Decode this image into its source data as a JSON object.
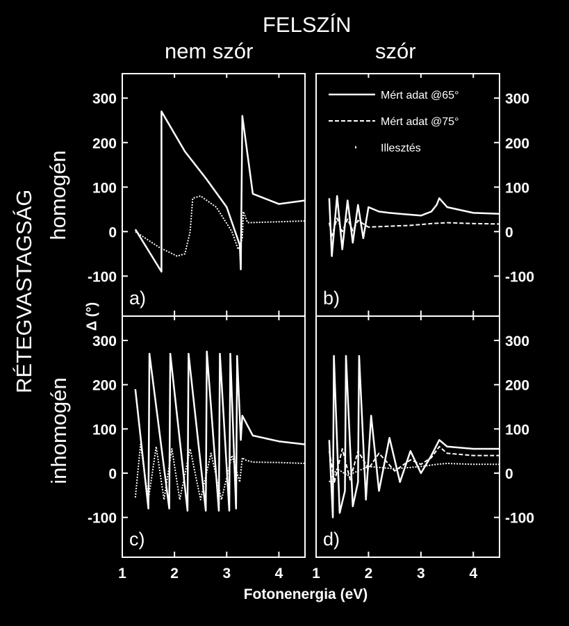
{
  "figure": {
    "top_title": "FELSZÍN",
    "col_left": "nem szór",
    "col_right": "szór",
    "row_axis_title": "RÉTEGVASTAGSÁG",
    "row_top": "homogén",
    "row_bottom": "inhomogén",
    "y_axis_label": "Δ (°)",
    "x_axis_label": "Fotonenergia (eV)",
    "colors": {
      "background": "#000000",
      "foreground": "#ffffff"
    }
  },
  "chart_data": [
    {
      "type": "line",
      "panel_label": "a)",
      "xlim": [
        1,
        4.5
      ],
      "ylim": [
        -190,
        355
      ],
      "x_ticks": [
        "1",
        "2",
        "3",
        "4"
      ],
      "y_ticks": [
        "-100",
        "0",
        "100",
        "200",
        "300"
      ],
      "y_axis_side": "left",
      "series": [
        {
          "style": "solid",
          "x": [
            1.25,
            1.75,
            1.75,
            2.2,
            2.6,
            3.0,
            3.25,
            3.27,
            3.3,
            3.5,
            4.0,
            4.5
          ],
          "y": [
            5,
            -90,
            270,
            180,
            120,
            55,
            -30,
            -85,
            260,
            85,
            62,
            70
          ]
        },
        {
          "style": "dotted",
          "x": [
            1.25,
            1.7,
            2.05,
            2.2,
            2.3,
            2.35,
            2.5,
            2.8,
            3.1,
            3.22,
            3.3,
            3.32,
            3.4,
            4.0,
            4.5
          ],
          "y": [
            0,
            -35,
            -55,
            -50,
            0,
            75,
            80,
            55,
            0,
            -40,
            -15,
            45,
            20,
            22,
            24
          ]
        }
      ]
    },
    {
      "type": "line",
      "panel_label": "b)",
      "xlim": [
        1,
        4.5
      ],
      "ylim": [
        -190,
        355
      ],
      "x_ticks": [
        "1",
        "2",
        "3",
        "4"
      ],
      "y_ticks": [
        "-100",
        "0",
        "100",
        "200",
        "300"
      ],
      "y_axis_side": "right",
      "legend": {
        "position": "top-right",
        "entries": [
          {
            "label": "Mért adat @65°",
            "style": "solid"
          },
          {
            "label": "Mért adat @75°",
            "style": "dashed"
          },
          {
            "label": "Illesztés",
            "style": "dot"
          }
        ]
      },
      "series": [
        {
          "style": "solid",
          "x": [
            1.25,
            1.3,
            1.4,
            1.5,
            1.6,
            1.7,
            1.8,
            1.9,
            2.0,
            2.2,
            2.4,
            2.6,
            2.8,
            3.0,
            3.2,
            3.3,
            3.35,
            3.5,
            4.0,
            4.5
          ],
          "y": [
            75,
            -55,
            80,
            -40,
            70,
            -25,
            60,
            -15,
            55,
            45,
            42,
            40,
            38,
            36,
            45,
            60,
            75,
            55,
            42,
            40
          ]
        },
        {
          "style": "dashed",
          "x": [
            1.25,
            1.3,
            1.4,
            1.5,
            1.6,
            1.7,
            1.8,
            2.0,
            2.4,
            2.8,
            3.2,
            3.5,
            4.0,
            4.5
          ],
          "y": [
            20,
            -10,
            30,
            0,
            28,
            2,
            25,
            10,
            12,
            14,
            18,
            20,
            18,
            17
          ]
        }
      ]
    },
    {
      "type": "line",
      "panel_label": "c)",
      "xlim": [
        1,
        4.5
      ],
      "ylim": [
        -190,
        355
      ],
      "x_ticks": [
        "1",
        "2",
        "3",
        "4"
      ],
      "y_ticks": [
        "-100",
        "0",
        "100",
        "200",
        "300"
      ],
      "y_axis_side": "left",
      "series": [
        {
          "style": "solid",
          "x": [
            1.25,
            1.5,
            1.52,
            1.9,
            1.92,
            2.25,
            2.27,
            2.6,
            2.62,
            2.85,
            2.87,
            3.05,
            3.07,
            3.18,
            3.2,
            3.27,
            3.3,
            3.5,
            4.0,
            4.5
          ],
          "y": [
            190,
            -80,
            270,
            -80,
            270,
            -85,
            270,
            -85,
            275,
            -85,
            270,
            -85,
            270,
            -80,
            265,
            75,
            130,
            85,
            72,
            65
          ]
        },
        {
          "style": "dotted",
          "x": [
            1.25,
            1.35,
            1.5,
            1.65,
            1.8,
            1.95,
            2.1,
            2.3,
            2.5,
            2.7,
            2.9,
            3.1,
            3.25,
            3.3,
            3.35,
            3.5,
            4.0,
            4.5
          ],
          "y": [
            -55,
            65,
            -60,
            60,
            -60,
            55,
            -60,
            55,
            -60,
            45,
            -60,
            40,
            -20,
            35,
            30,
            25,
            24,
            22
          ]
        }
      ]
    },
    {
      "type": "line",
      "panel_label": "d)",
      "xlim": [
        1,
        4.5
      ],
      "ylim": [
        -190,
        355
      ],
      "x_ticks": [
        "1",
        "2",
        "3",
        "4"
      ],
      "y_ticks": [
        "-100",
        "0",
        "100",
        "200",
        "300"
      ],
      "y_axis_side": "right",
      "series": [
        {
          "style": "solid",
          "x": [
            1.25,
            1.32,
            1.34,
            1.45,
            1.55,
            1.57,
            1.7,
            1.8,
            1.82,
            1.95,
            2.05,
            2.2,
            2.4,
            2.6,
            2.8,
            3.0,
            3.2,
            3.35,
            3.5,
            4.0,
            4.5
          ],
          "y": [
            75,
            -100,
            265,
            -90,
            -40,
            265,
            -75,
            -20,
            265,
            -60,
            130,
            -40,
            80,
            -20,
            50,
            0,
            40,
            75,
            60,
            55,
            55
          ]
        },
        {
          "style": "dashed",
          "x": [
            1.25,
            1.35,
            1.5,
            1.65,
            1.8,
            2.0,
            2.2,
            2.5,
            2.8,
            3.0,
            3.2,
            3.35,
            3.5,
            4.0,
            4.5
          ],
          "y": [
            50,
            -20,
            55,
            -15,
            50,
            10,
            45,
            5,
            30,
            20,
            35,
            60,
            45,
            40,
            40
          ]
        },
        {
          "style": "dotted",
          "x": [
            1.25,
            1.4,
            1.6,
            2.0,
            2.5,
            3.0,
            3.3,
            3.5,
            4.0,
            4.5
          ],
          "y": [
            -20,
            10,
            -5,
            15,
            10,
            15,
            20,
            22,
            20,
            20
          ]
        }
      ]
    }
  ]
}
